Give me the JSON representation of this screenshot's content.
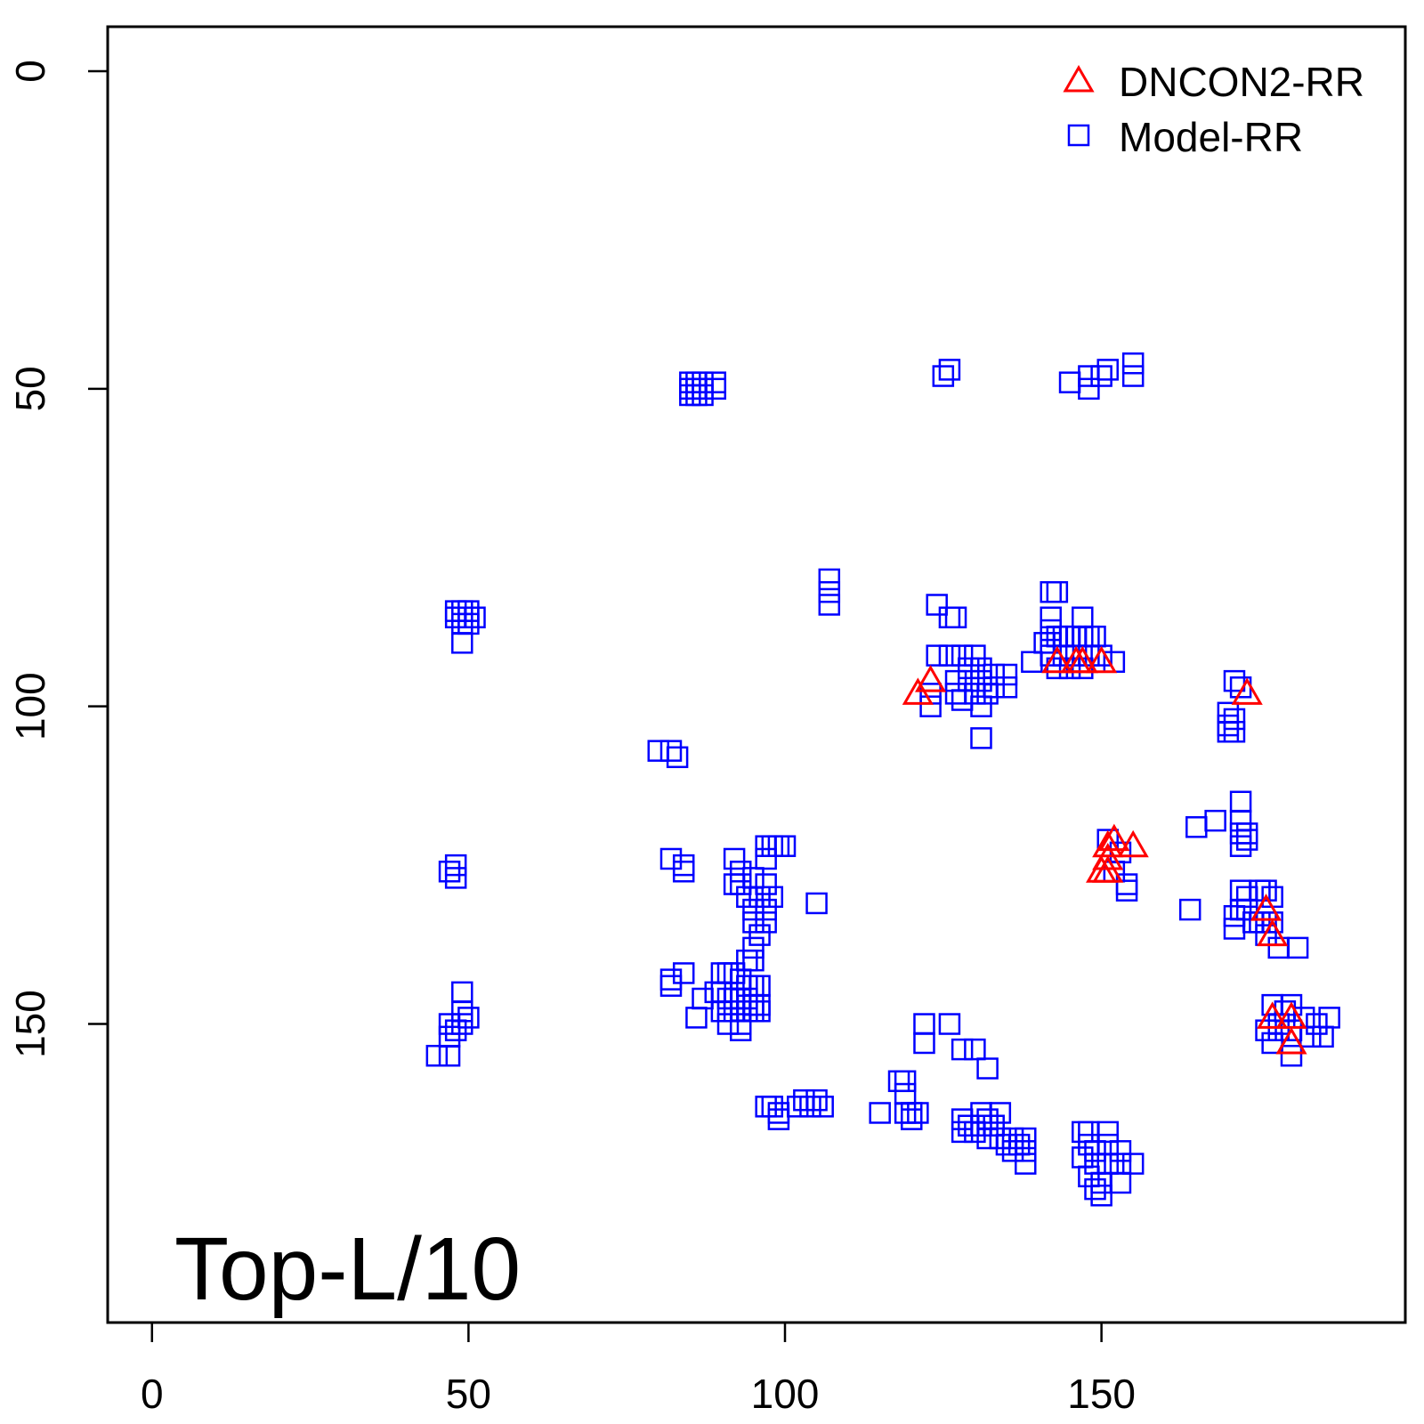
{
  "chart_data": {
    "type": "scatter",
    "title": "",
    "xlabel": "",
    "ylabel": "",
    "xlim": [
      -7,
      198
    ],
    "ylim": [
      -7,
      197
    ],
    "y_reversed": true,
    "x_ticks": [
      0,
      50,
      100,
      150
    ],
    "y_ticks": [
      0,
      50,
      100,
      150
    ],
    "x_tick_labels": [
      "0",
      "50",
      "100",
      "150"
    ],
    "y_tick_labels": [
      "0",
      "50",
      "100",
      "150"
    ],
    "panel_label": "Top-L/10",
    "legend": {
      "position": "top-right"
    },
    "series": [
      {
        "name": "DNCON2-RR",
        "marker": "triangle",
        "color": "#ff0000",
        "points": [
          [
            121,
            98
          ],
          [
            123,
            96
          ],
          [
            143,
            93
          ],
          [
            146,
            93
          ],
          [
            147,
            93
          ],
          [
            150,
            93
          ],
          [
            173,
            98
          ],
          [
            151,
            122
          ],
          [
            152,
            121
          ],
          [
            151,
            124
          ],
          [
            150,
            126
          ],
          [
            151,
            126
          ],
          [
            155,
            122
          ],
          [
            176,
            132
          ],
          [
            177,
            136
          ],
          [
            177,
            149
          ],
          [
            180,
            149
          ],
          [
            180,
            153
          ]
        ]
      },
      {
        "name": "Model-RR",
        "marker": "square",
        "color": "#0000ff",
        "points": [
          [
            85,
            49
          ],
          [
            85,
            50
          ],
          [
            85,
            51
          ],
          [
            86,
            49
          ],
          [
            86,
            50
          ],
          [
            86,
            51
          ],
          [
            87,
            49
          ],
          [
            87,
            50
          ],
          [
            87,
            51
          ],
          [
            89,
            49
          ],
          [
            89,
            50
          ],
          [
            125,
            48
          ],
          [
            126,
            47
          ],
          [
            145,
            49
          ],
          [
            148,
            48
          ],
          [
            148,
            50
          ],
          [
            150,
            48
          ],
          [
            151,
            47
          ],
          [
            155,
            46
          ],
          [
            155,
            48
          ],
          [
            107,
            80
          ],
          [
            107,
            82
          ],
          [
            107,
            84
          ],
          [
            124,
            84
          ],
          [
            126,
            86
          ],
          [
            127,
            86
          ],
          [
            142,
            82
          ],
          [
            143,
            82
          ],
          [
            142,
            86
          ],
          [
            147,
            86
          ],
          [
            142,
            88
          ],
          [
            142,
            90
          ],
          [
            141,
            90
          ],
          [
            143,
            89
          ],
          [
            144,
            89
          ],
          [
            145,
            89
          ],
          [
            146,
            89
          ],
          [
            147,
            89
          ],
          [
            148,
            89
          ],
          [
            149,
            89
          ],
          [
            142,
            92
          ],
          [
            144,
            92
          ],
          [
            146,
            92
          ],
          [
            148,
            92
          ],
          [
            150,
            92
          ],
          [
            152,
            93
          ],
          [
            143,
            94
          ],
          [
            145,
            94
          ],
          [
            147,
            94
          ],
          [
            139,
            93
          ],
          [
            124,
            92
          ],
          [
            126,
            92
          ],
          [
            128,
            92
          ],
          [
            130,
            92
          ],
          [
            129,
            94
          ],
          [
            131,
            94
          ],
          [
            133,
            95
          ],
          [
            135,
            95
          ],
          [
            127,
            96
          ],
          [
            129,
            96
          ],
          [
            131,
            96
          ],
          [
            133,
            97
          ],
          [
            135,
            97
          ],
          [
            127,
            98
          ],
          [
            130,
            98
          ],
          [
            132,
            98
          ],
          [
            131,
            100
          ],
          [
            128,
            99
          ],
          [
            123,
            98
          ],
          [
            123,
            100
          ],
          [
            131,
            105
          ],
          [
            49,
            85
          ],
          [
            49,
            86
          ],
          [
            49,
            87
          ],
          [
            48,
            86
          ],
          [
            48,
            85
          ],
          [
            50,
            85
          ],
          [
            50,
            86
          ],
          [
            51,
            86
          ],
          [
            50,
            87
          ],
          [
            49,
            90
          ],
          [
            80,
            107
          ],
          [
            82,
            107
          ],
          [
            83,
            108
          ],
          [
            171,
            96
          ],
          [
            172,
            97
          ],
          [
            170,
            101
          ],
          [
            171,
            102
          ],
          [
            171,
            104
          ],
          [
            170,
            104
          ],
          [
            170,
            103
          ],
          [
            172,
            115
          ],
          [
            172,
            118
          ],
          [
            172,
            120
          ],
          [
            173,
            120
          ],
          [
            173,
            121
          ],
          [
            172,
            122
          ],
          [
            168,
            118
          ],
          [
            165,
            119
          ],
          [
            172,
            129
          ],
          [
            173,
            130
          ],
          [
            175,
            129
          ],
          [
            176,
            129
          ],
          [
            177,
            130
          ],
          [
            171,
            133
          ],
          [
            172,
            132
          ],
          [
            173,
            132
          ],
          [
            174,
            134
          ],
          [
            175,
            134
          ],
          [
            176,
            134
          ],
          [
            177,
            134
          ],
          [
            176,
            136
          ],
          [
            178,
            138
          ],
          [
            181,
            138
          ],
          [
            164,
            132
          ],
          [
            171,
            135
          ],
          [
            151,
            121
          ],
          [
            153,
            123
          ],
          [
            152,
            126
          ],
          [
            154,
            128
          ],
          [
            154,
            129
          ],
          [
            48,
            125
          ],
          [
            47,
            126
          ],
          [
            48,
            127
          ],
          [
            82,
            124
          ],
          [
            84,
            125
          ],
          [
            84,
            126
          ],
          [
            92,
            124
          ],
          [
            93,
            126
          ],
          [
            93,
            128
          ],
          [
            95,
            127
          ],
          [
            97,
            128
          ],
          [
            92,
            128
          ],
          [
            94,
            130
          ],
          [
            96,
            130
          ],
          [
            98,
            130
          ],
          [
            97,
            132
          ],
          [
            95,
            132
          ],
          [
            97,
            134
          ],
          [
            95,
            134
          ],
          [
            96,
            136
          ],
          [
            95,
            138
          ],
          [
            98,
            122
          ],
          [
            97,
            122
          ],
          [
            99,
            122
          ],
          [
            100,
            122
          ],
          [
            97,
            124
          ],
          [
            105,
            131
          ],
          [
            90,
            142
          ],
          [
            91,
            142
          ],
          [
            92,
            142
          ],
          [
            93,
            143
          ],
          [
            94,
            144
          ],
          [
            95,
            144
          ],
          [
            96,
            144
          ],
          [
            89,
            145
          ],
          [
            90,
            145
          ],
          [
            91,
            146
          ],
          [
            92,
            146
          ],
          [
            93,
            146
          ],
          [
            94,
            146
          ],
          [
            95,
            147
          ],
          [
            96,
            147
          ],
          [
            90,
            148
          ],
          [
            91,
            148
          ],
          [
            92,
            148
          ],
          [
            93,
            148
          ],
          [
            94,
            148
          ],
          [
            95,
            148
          ],
          [
            96,
            148
          ],
          [
            91,
            150
          ],
          [
            93,
            150
          ],
          [
            87,
            146
          ],
          [
            86,
            149
          ],
          [
            84,
            142
          ],
          [
            82,
            143
          ],
          [
            82,
            144
          ],
          [
            94,
            140
          ],
          [
            95,
            140
          ],
          [
            93,
            151
          ],
          [
            49,
            145
          ],
          [
            49,
            148
          ],
          [
            50,
            149
          ],
          [
            48,
            151
          ],
          [
            47,
            150
          ],
          [
            47,
            152
          ],
          [
            45,
            155
          ],
          [
            47,
            155
          ],
          [
            49,
            150
          ],
          [
            177,
            147
          ],
          [
            180,
            147
          ],
          [
            179,
            148
          ],
          [
            178,
            150
          ],
          [
            182,
            149
          ],
          [
            184,
            150
          ],
          [
            186,
            149
          ],
          [
            176,
            151
          ],
          [
            178,
            151
          ],
          [
            180,
            151
          ],
          [
            183,
            152
          ],
          [
            185,
            152
          ],
          [
            177,
            153
          ],
          [
            180,
            155
          ],
          [
            122,
            150
          ],
          [
            122,
            153
          ],
          [
            126,
            150
          ],
          [
            128,
            154
          ],
          [
            130,
            154
          ],
          [
            132,
            157
          ],
          [
            118,
            159
          ],
          [
            119,
            159
          ],
          [
            119,
            161
          ],
          [
            115,
            164
          ],
          [
            119,
            164
          ],
          [
            120,
            164
          ],
          [
            121,
            164
          ],
          [
            120,
            165
          ],
          [
            98,
            163
          ],
          [
            99,
            164
          ],
          [
            99,
            165
          ],
          [
            102,
            163
          ],
          [
            103,
            162
          ],
          [
            104,
            163
          ],
          [
            105,
            162
          ],
          [
            106,
            163
          ],
          [
            97,
            163
          ],
          [
            128,
            165
          ],
          [
            131,
            164
          ],
          [
            132,
            165
          ],
          [
            134,
            164
          ],
          [
            129,
            166
          ],
          [
            131,
            166
          ],
          [
            133,
            166
          ],
          [
            128,
            167
          ],
          [
            130,
            167
          ],
          [
            132,
            168
          ],
          [
            134,
            168
          ],
          [
            136,
            168
          ],
          [
            135,
            169
          ],
          [
            137,
            169
          ],
          [
            138,
            168
          ],
          [
            138,
            170
          ],
          [
            136,
            170
          ],
          [
            138,
            172
          ],
          [
            147,
            167
          ],
          [
            148,
            167
          ],
          [
            151,
            167
          ],
          [
            148,
            169
          ],
          [
            149,
            170
          ],
          [
            151,
            169
          ],
          [
            153,
            170
          ],
          [
            147,
            171
          ],
          [
            149,
            172
          ],
          [
            151,
            172
          ],
          [
            153,
            172
          ],
          [
            155,
            172
          ],
          [
            148,
            174
          ],
          [
            150,
            175
          ],
          [
            153,
            175
          ],
          [
            150,
            177
          ],
          [
            149,
            176
          ]
        ]
      }
    ]
  }
}
